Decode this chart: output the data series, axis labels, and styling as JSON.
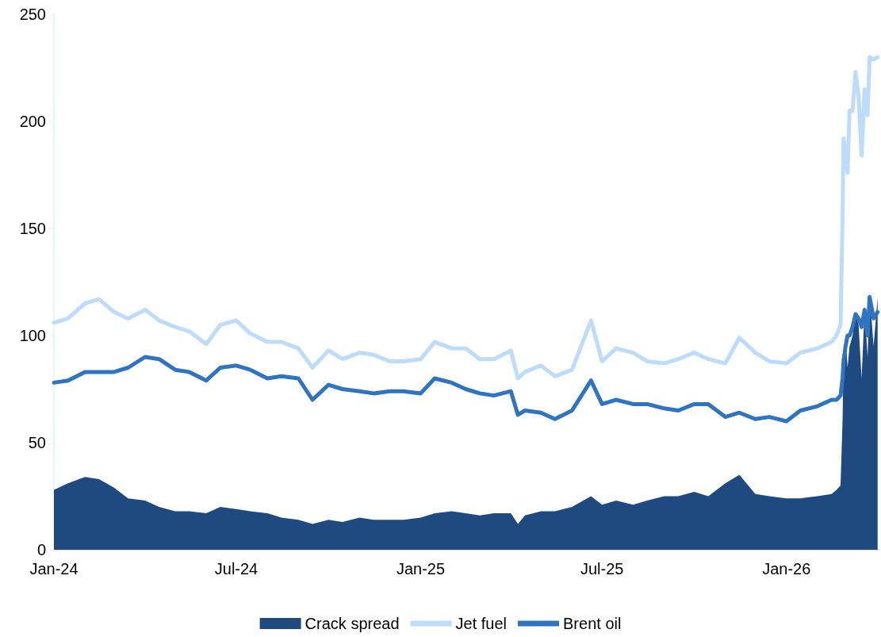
{
  "chart_data": {
    "type": "line",
    "x": [
      "2024-01-01",
      "2024-01-15",
      "2024-02-01",
      "2024-02-15",
      "2024-03-01",
      "2024-03-15",
      "2024-04-01",
      "2024-04-15",
      "2024-05-01",
      "2024-05-15",
      "2024-06-01",
      "2024-06-15",
      "2024-07-01",
      "2024-07-15",
      "2024-08-01",
      "2024-08-15",
      "2024-09-01",
      "2024-09-15",
      "2024-10-01",
      "2024-10-15",
      "2024-11-01",
      "2024-11-15",
      "2024-12-01",
      "2024-12-15",
      "2025-01-01",
      "2025-01-15",
      "2025-02-01",
      "2025-02-15",
      "2025-03-01",
      "2025-03-15",
      "2025-04-01",
      "2025-04-08",
      "2025-04-15",
      "2025-05-01",
      "2025-05-15",
      "2025-06-01",
      "2025-06-20",
      "2025-07-01",
      "2025-07-15",
      "2025-08-01",
      "2025-08-15",
      "2025-09-01",
      "2025-09-15",
      "2025-10-01",
      "2025-10-15",
      "2025-11-01",
      "2025-11-15",
      "2025-12-01",
      "2025-12-15",
      "2026-01-01",
      "2026-01-15",
      "2026-02-01",
      "2026-02-15",
      "2026-02-20",
      "2026-02-24",
      "2026-02-26",
      "2026-02-27",
      "2026-03-01",
      "2026-03-03",
      "2026-03-05",
      "2026-03-08",
      "2026-03-11",
      "2026-03-14",
      "2026-03-17",
      "2026-03-20",
      "2026-03-23",
      "2026-03-25",
      "2026-03-29",
      "2026-04-02"
    ],
    "series": [
      {
        "name": "Crack spread",
        "type": "area",
        "color": "#1f4a80",
        "values": [
          28,
          31,
          34,
          33,
          29,
          24,
          23,
          20,
          18,
          18,
          17,
          20,
          19,
          18,
          17,
          15,
          14,
          12,
          14,
          13,
          15,
          14,
          14,
          14,
          15,
          17,
          18,
          17,
          16,
          17,
          17,
          12,
          16,
          18,
          18,
          20,
          25,
          21,
          23,
          21,
          23,
          25,
          25,
          27,
          25,
          31,
          35,
          26,
          25,
          24,
          24,
          25,
          26,
          28,
          30,
          60,
          90,
          100,
          85,
          95,
          100,
          110,
          105,
          80,
          112,
          90,
          120,
          95,
          118
        ]
      },
      {
        "name": "Jet fuel",
        "color": "#bddcfb",
        "values": [
          106,
          108,
          115,
          117,
          111,
          108,
          112,
          107,
          104,
          102,
          96,
          105,
          107,
          101,
          97,
          97,
          94,
          85,
          93,
          89,
          92,
          91,
          88,
          88,
          89,
          97,
          94,
          94,
          89,
          89,
          93,
          80,
          83,
          86,
          81,
          84,
          107,
          88,
          94,
          92,
          88,
          87,
          89,
          92,
          89,
          87,
          99,
          92,
          88,
          87,
          92,
          94,
          97,
          100,
          105,
          155,
          192,
          185,
          176,
          205,
          205,
          223,
          212,
          184,
          215,
          203,
          230,
          229,
          230
        ]
      },
      {
        "name": "Brent oil",
        "color": "#2e74c0",
        "values": [
          78,
          79,
          83,
          83,
          83,
          85,
          90,
          89,
          84,
          83,
          79,
          85,
          86,
          84,
          80,
          81,
          80,
          70,
          77,
          75,
          74,
          73,
          74,
          74,
          73,
          80,
          78,
          75,
          73,
          72,
          74,
          63,
          65,
          64,
          61,
          65,
          79,
          68,
          70,
          68,
          68,
          66,
          65,
          68,
          68,
          62,
          64,
          61,
          62,
          60,
          65,
          67,
          70,
          70,
          72,
          80,
          88,
          95,
          100,
          100,
          104,
          110,
          108,
          104,
          112,
          100,
          118,
          108,
          111
        ]
      }
    ],
    "xlim": [
      "2024-01-01",
      "2026-04-03"
    ],
    "xticks": [
      {
        "value": "2024-01-01",
        "label": "Jan-24"
      },
      {
        "value": "2024-07-01",
        "label": "Jul-24"
      },
      {
        "value": "2025-01-01",
        "label": "Jan-25"
      },
      {
        "value": "2025-07-01",
        "label": "Jul-25"
      },
      {
        "value": "2026-01-01",
        "label": "Jan-26"
      }
    ],
    "ylim": [
      0,
      250
    ],
    "yticks": [
      0,
      50,
      100,
      150,
      200,
      250
    ],
    "grid": false,
    "legend": "bottom",
    "marker": "none",
    "line_style": "solid"
  }
}
